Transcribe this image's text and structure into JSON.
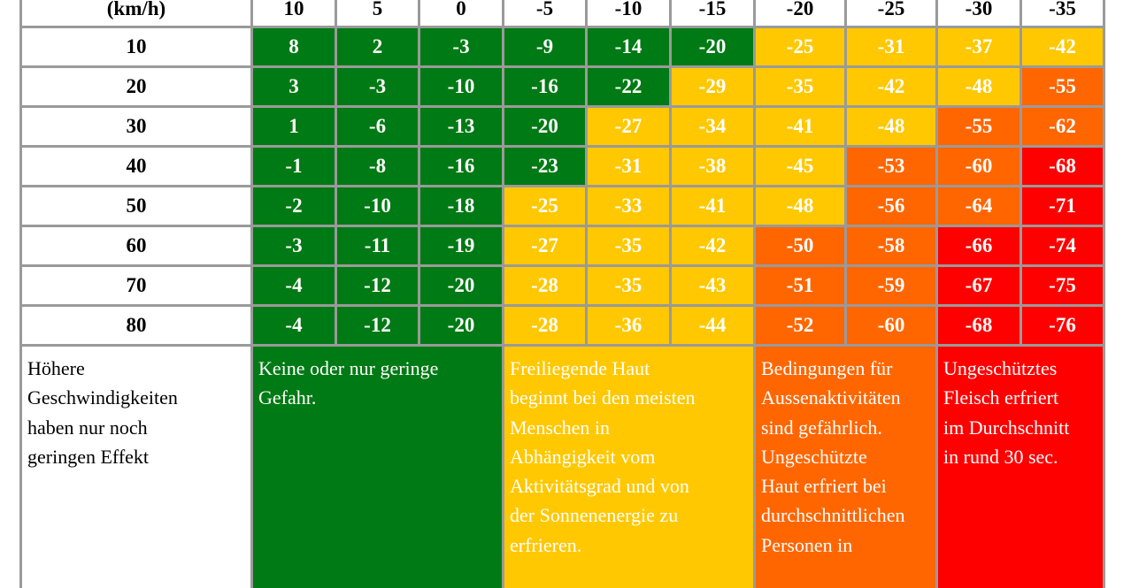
{
  "speed_unit_label": "(km/h)",
  "temperatures": [
    "10",
    "5",
    "0",
    "-5",
    "-10",
    "-15",
    "-20",
    "-25",
    "-30",
    "-35"
  ],
  "rows": [
    {
      "speed": "10",
      "values": [
        "8",
        "2",
        "-3",
        "-9",
        "-14",
        "-20",
        "-25",
        "-31",
        "-37",
        "-42"
      ],
      "levels": [
        "g",
        "g",
        "g",
        "g",
        "g",
        "g",
        "y",
        "y",
        "y",
        "y"
      ]
    },
    {
      "speed": "20",
      "values": [
        "3",
        "-3",
        "-10",
        "-16",
        "-22",
        "-29",
        "-35",
        "-42",
        "-48",
        "-55"
      ],
      "levels": [
        "g",
        "g",
        "g",
        "g",
        "g",
        "y",
        "y",
        "y",
        "y",
        "o"
      ]
    },
    {
      "speed": "30",
      "values": [
        "1",
        "-6",
        "-13",
        "-20",
        "-27",
        "-34",
        "-41",
        "-48",
        "-55",
        "-62"
      ],
      "levels": [
        "g",
        "g",
        "g",
        "g",
        "y",
        "y",
        "y",
        "y",
        "o",
        "o"
      ]
    },
    {
      "speed": "40",
      "values": [
        "-1",
        "-8",
        "-16",
        "-23",
        "-31",
        "-38",
        "-45",
        "-53",
        "-60",
        "-68"
      ],
      "levels": [
        "g",
        "g",
        "g",
        "g",
        "y",
        "y",
        "y",
        "o",
        "o",
        "r"
      ]
    },
    {
      "speed": "50",
      "values": [
        "-2",
        "-10",
        "-18",
        "-25",
        "-33",
        "-41",
        "-48",
        "-56",
        "-64",
        "-71"
      ],
      "levels": [
        "g",
        "g",
        "g",
        "y",
        "y",
        "y",
        "y",
        "o",
        "o",
        "r"
      ]
    },
    {
      "speed": "60",
      "values": [
        "-3",
        "-11",
        "-19",
        "-27",
        "-35",
        "-42",
        "-50",
        "-58",
        "-66",
        "-74"
      ],
      "levels": [
        "g",
        "g",
        "g",
        "y",
        "y",
        "y",
        "o",
        "o",
        "r",
        "r"
      ]
    },
    {
      "speed": "70",
      "values": [
        "-4",
        "-12",
        "-20",
        "-28",
        "-35",
        "-43",
        "-51",
        "-59",
        "-67",
        "-75"
      ],
      "levels": [
        "g",
        "g",
        "g",
        "y",
        "y",
        "y",
        "o",
        "o",
        "r",
        "r"
      ]
    },
    {
      "speed": "80",
      "values": [
        "-4",
        "-12",
        "-20",
        "-28",
        "-36",
        "-44",
        "-52",
        "-60",
        "-68",
        "-76"
      ],
      "levels": [
        "g",
        "g",
        "g",
        "y",
        "y",
        "y",
        "o",
        "o",
        "r",
        "r"
      ]
    }
  ],
  "legend": {
    "speed_note": "Höhere\nGeschwindigkeiten\nhaben nur noch\ngeringen Effekt",
    "green": "Keine oder nur geringe\nGefahr.",
    "yellow": "Freiliegende Haut\nbeginnt bei den meisten\nMenschen in\nAbhängigkeit vom\nAktivitätsgrad und von\nder Sonnenenergie zu\nerfrieren.",
    "orange": "Bedingungen für\nAussenaktivitäten\nsind gefährlich.\nUngeschützte\nHaut erfriert bei\ndurchschnittlichen\nPersonen in",
    "red": "Ungeschütztes\nFleisch erfriert\nim Durchschnitt\nin rund 30 sec."
  },
  "colors": {
    "green": "#007a14",
    "yellow": "#ffc800",
    "orange": "#ff6600",
    "red": "#ff0000",
    "border": "#9a9a9a"
  }
}
